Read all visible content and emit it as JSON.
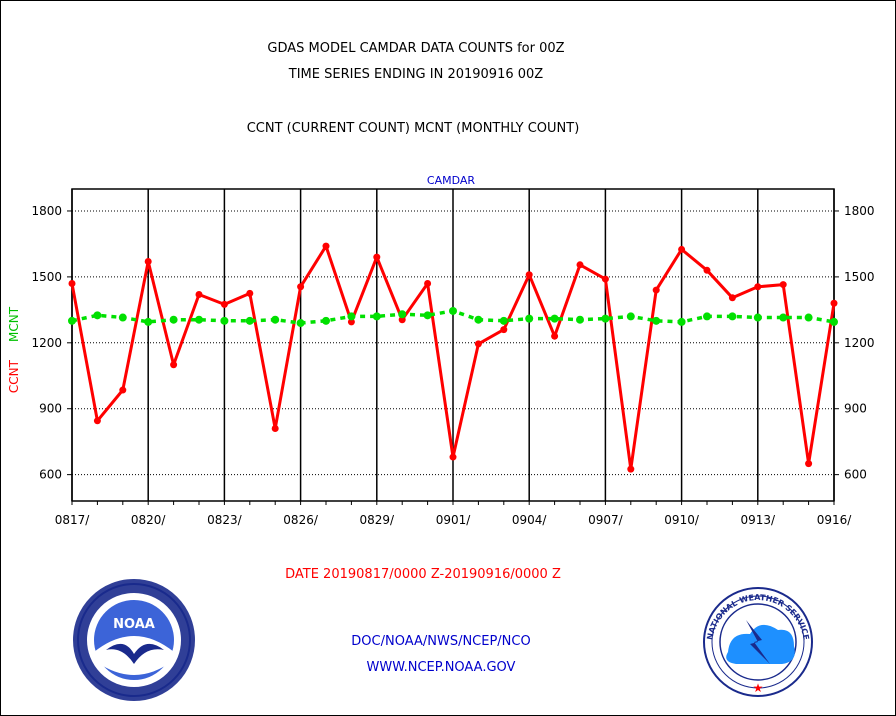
{
  "header": {
    "title_line1": "GDAS MODEL CAMDAR DATA COUNTS for 00Z",
    "title_line2": "TIME SERIES ENDING IN 20190916 00Z",
    "subtitle": "CCNT (CURRENT COUNT) MCNT (MONTHLY COUNT)"
  },
  "footer": {
    "date_range": "DATE 20190817/0000 Z-20190916/0000 Z",
    "org_line": "DOC/NOAA/NWS/NCEP/NCO",
    "url_line": "WWW.NCEP.NOAA.GOV"
  },
  "logos": {
    "noaa_text": "NOAA",
    "nws_text": "NATIONAL WEATHER SERVICE"
  },
  "colors": {
    "ccnt": "#ff0000",
    "mcnt": "#00e000",
    "label_blue": "#0000cc",
    "date_red": "#ff0000",
    "navy": "#1a2a8c"
  },
  "chart_data": {
    "type": "line",
    "title": "CAMDAR",
    "ylabel_left_1": "CCNT",
    "ylabel_left_2": "MCNT",
    "ylim": [
      480,
      1900
    ],
    "yticks": [
      600,
      900,
      1200,
      1500,
      1800
    ],
    "xtick_labels": [
      "0817/",
      "0820/",
      "0823/",
      "0826/",
      "0829/",
      "0901/",
      "0904/",
      "0907/",
      "0910/",
      "0913/",
      "0916/"
    ],
    "x": [
      "0817",
      "0818",
      "0819",
      "0820",
      "0821",
      "0822",
      "0823",
      "0824",
      "0825",
      "0826",
      "0827",
      "0828",
      "0829",
      "0830",
      "0831",
      "0901",
      "0902",
      "0903",
      "0904",
      "0905",
      "0906",
      "0907",
      "0908",
      "0909",
      "0910",
      "0911",
      "0912",
      "0913",
      "0914",
      "0915",
      "0916"
    ],
    "grid": true,
    "series": [
      {
        "name": "CCNT",
        "style": "solid",
        "values": [
          1470,
          845,
          985,
          1570,
          1100,
          1420,
          1375,
          1425,
          810,
          1455,
          1640,
          1295,
          1590,
          1305,
          1470,
          680,
          1195,
          1260,
          1510,
          1230,
          1555,
          1490,
          625,
          1440,
          1625,
          1530,
          1405,
          1455,
          1465,
          650,
          1380
        ]
      },
      {
        "name": "MCNT",
        "style": "dashed",
        "values": [
          1300,
          1325,
          1315,
          1295,
          1305,
          1305,
          1300,
          1300,
          1305,
          1290,
          1300,
          1320,
          1320,
          1330,
          1325,
          1345,
          1305,
          1300,
          1310,
          1310,
          1305,
          1310,
          1320,
          1300,
          1295,
          1320,
          1320,
          1315,
          1315,
          1315,
          1295
        ]
      }
    ]
  }
}
